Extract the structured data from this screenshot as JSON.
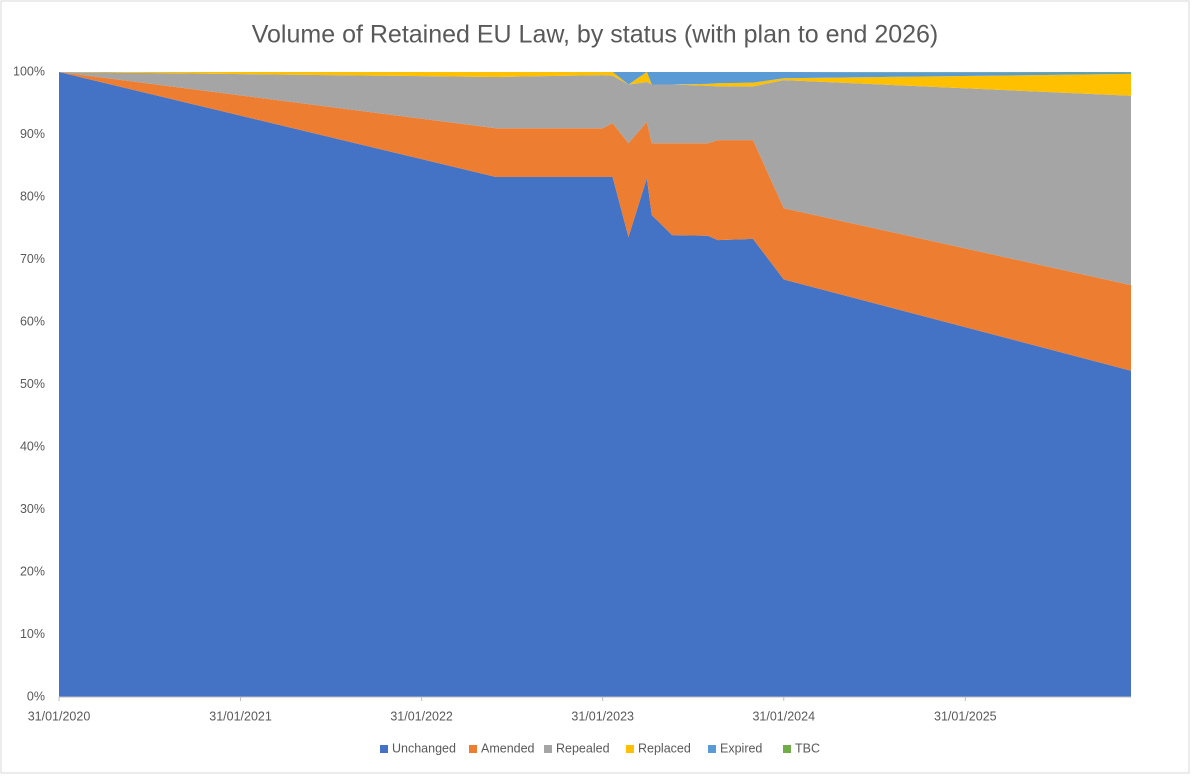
{
  "chart_data": {
    "type": "stacked_area",
    "title": "Volume of Retained EU Law, by status (with plan to end 2026)",
    "x": [
      "31/01/2020",
      "30/06/2022",
      "31/01/2023",
      "20/02/2023",
      "24/03/2023",
      "30/04/2023",
      "10/05/2023",
      "20/06/2023",
      "31/08/2023",
      "20/09/2023",
      "30/11/2023",
      "31/01/2024",
      "31/12/2025"
    ],
    "series": [
      {
        "name": "Unchanged",
        "color": "#4472c4",
        "values": [
          100,
          83.2,
          83.2,
          83.2,
          73.6,
          83.0,
          77.1,
          73.9,
          73.8,
          73.1,
          73.3,
          66.8,
          52.2
        ]
      },
      {
        "name": "Amended",
        "color": "#ed7d31",
        "values": [
          0,
          7.8,
          7.8,
          8.6,
          15.0,
          9.0,
          11.5,
          14.7,
          14.8,
          16.0,
          15.8,
          11.4,
          13.7
        ]
      },
      {
        "name": "Repealed",
        "color": "#a5a5a5",
        "values": [
          0,
          8.2,
          8.5,
          7.6,
          9.4,
          6.4,
          9.4,
          9.4,
          9.2,
          8.6,
          8.6,
          20.5,
          30.3
        ]
      },
      {
        "name": "Replaced",
        "color": "#ffc000",
        "values": [
          0,
          0.8,
          0.5,
          0.6,
          0,
          1.6,
          0,
          0,
          0.3,
          0.5,
          0.6,
          0.3,
          3.5
        ]
      },
      {
        "name": "Expired",
        "color": "#5b9bd5",
        "values": [
          0,
          0,
          0,
          0,
          2.0,
          0,
          2.0,
          2.0,
          1.9,
          1.8,
          1.7,
          1.0,
          0.2
        ]
      },
      {
        "name": "TBC",
        "color": "#70ad47",
        "values": [
          0,
          0,
          0,
          0,
          0,
          0,
          0,
          0,
          0,
          0,
          0,
          0,
          0.1
        ]
      }
    ],
    "xlim": [
      "31/01/2020",
      "31/12/2025"
    ],
    "xticks": [
      "31/01/2020",
      "31/01/2021",
      "31/01/2022",
      "31/01/2023",
      "31/01/2024",
      "31/01/2025"
    ],
    "ylim": [
      0,
      100
    ],
    "yticks": [
      {
        "value": 0,
        "label": "0%"
      },
      {
        "value": 10,
        "label": "10%"
      },
      {
        "value": 20,
        "label": "20%"
      },
      {
        "value": 30,
        "label": "30%"
      },
      {
        "value": 40,
        "label": "40%"
      },
      {
        "value": 50,
        "label": "50%"
      },
      {
        "value": 60,
        "label": "60%"
      },
      {
        "value": 70,
        "label": "70%"
      },
      {
        "value": 80,
        "label": "80%"
      },
      {
        "value": 90,
        "label": "90%"
      },
      {
        "value": 100,
        "label": "100%"
      }
    ],
    "grid": false,
    "legend": "bottom"
  }
}
